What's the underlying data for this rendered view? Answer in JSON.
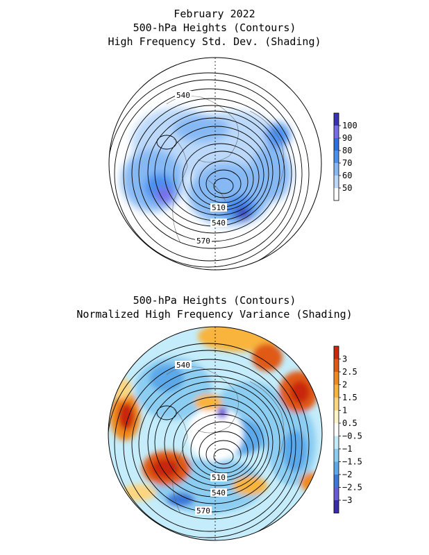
{
  "top_panel": {
    "title_lines": [
      "February 2022",
      "500-hPa Heights (Contours)",
      "High Frequency Std. Dev. (Shading)"
    ],
    "contour_labels": [
      "540",
      "510",
      "540",
      "570"
    ],
    "colorbar": {
      "labels": [
        "100",
        "90",
        "80",
        "70",
        "60",
        "50"
      ],
      "colors": [
        "#3a32b4",
        "#7a6ce8",
        "#2e6fe0",
        "#4a90ee",
        "#86b9f4",
        "#bcd9fa",
        "#ffffff"
      ]
    }
  },
  "bottom_panel": {
    "title_lines": [
      "500-hPa Heights (Contours)",
      "Normalized High Frequency Variance (Shading)"
    ],
    "contour_labels": [
      "540",
      "510",
      "540",
      "570"
    ],
    "colorbar": {
      "labels": [
        "3",
        "2.5",
        "2",
        "1.5",
        "1",
        "0.5",
        "-0.5",
        "-1",
        "-1.5",
        "-2",
        "-2.5",
        "-3"
      ],
      "colors": [
        "#c8280c",
        "#e05a14",
        "#f08a1e",
        "#f8b43c",
        "#fcd680",
        "#fff3c8",
        "#ffffff",
        "#c4ecfa",
        "#8ccdf2",
        "#5ca8e8",
        "#3c78d8",
        "#6a5ad8",
        "#3a2ca8"
      ]
    }
  }
}
